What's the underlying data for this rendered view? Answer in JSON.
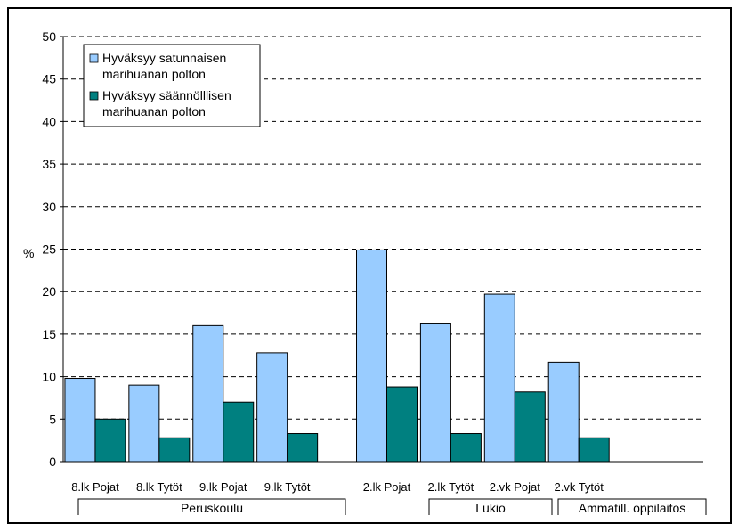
{
  "chart_data": {
    "type": "bar",
    "title": "",
    "xlabel": "",
    "ylabel": "%",
    "ylim": [
      0,
      50
    ],
    "yticks": [
      0,
      5,
      10,
      15,
      20,
      25,
      30,
      35,
      40,
      45,
      50
    ],
    "grid": true,
    "legend_position": "top-left",
    "categories": [
      "8.lk Pojat",
      "8.lk Tytöt",
      "9.lk Pojat",
      "9.lk Tytöt",
      "2.lk Pojat",
      "2.lk Tytöt",
      "2.vk Pojat",
      "2.vk Tytöt"
    ],
    "groups": [
      {
        "label": "Peruskoulu",
        "categories": [
          "8.lk Pojat",
          "8.lk Tytöt",
          "9.lk Pojat",
          "9.lk Tytöt"
        ]
      },
      {
        "label": "Lukio",
        "categories": [
          "2.lk Pojat",
          "2.lk Tytöt"
        ]
      },
      {
        "label": "Ammatill. oppilaitos",
        "categories": [
          "2.vk Pojat",
          "2.vk Tytöt"
        ]
      }
    ],
    "series": [
      {
        "name": "Hyväksyy satunnaisen marihuanan polton",
        "color": "#99ccff",
        "values": [
          9.8,
          9.0,
          16.0,
          12.8,
          24.9,
          16.2,
          19.7,
          11.7
        ]
      },
      {
        "name": "Hyväksyy säännölllisen marihuanan polton",
        "color": "#008080",
        "values": [
          5.0,
          2.8,
          7.0,
          3.3,
          8.8,
          3.3,
          8.2,
          2.8
        ]
      }
    ]
  }
}
